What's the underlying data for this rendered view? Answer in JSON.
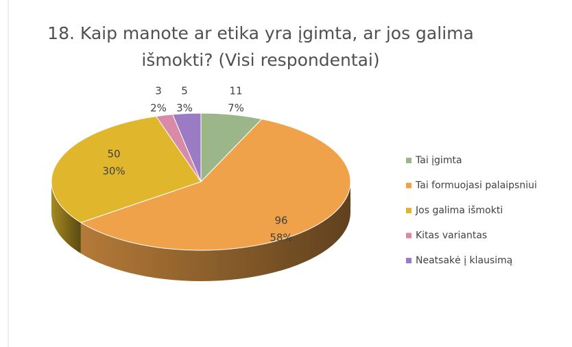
{
  "chart_data": {
    "type": "pie3d",
    "title_lines": [
      "18. Kaip manote ar etika yra įgimta, ar jos galima",
      "išmokti? (Visi respondentai)"
    ],
    "categories": [
      "Tai įgimta",
      "Tai formuojasi palaipsniui",
      "Jos galima išmokti",
      "Kitas variantas",
      "Neatsakė į klausimą"
    ],
    "values": [
      11,
      96,
      50,
      3,
      5
    ],
    "percent_labels": [
      "7%",
      "58%",
      "30%",
      "2%",
      "3%"
    ],
    "colors": [
      "#9bb78a",
      "#f0a24a",
      "#e0b72c",
      "#d98aa6",
      "#9b7bc4"
    ],
    "legend": "right"
  }
}
